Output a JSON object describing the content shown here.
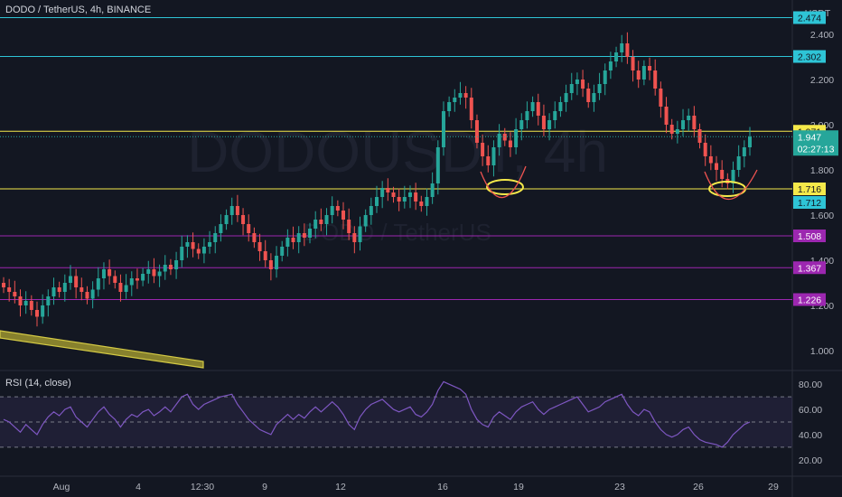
{
  "header": {
    "symbol": "DODO / TetherUS, 4h, BINANCE"
  },
  "currency": "USDT",
  "watermark": {
    "line1": "DODOUSDT, 4h",
    "line2": "DODO / TetherUS"
  },
  "countdown": "02:27:13",
  "colors": {
    "up": "#26a69a",
    "down": "#ef5350",
    "cyan": "#2ec4d6",
    "yellow": "#f5e94a",
    "purple": "#9c27b0",
    "rsi": "#7e57c2",
    "bg": "#131722"
  },
  "chart_data": [
    {
      "type": "candlestick",
      "title": "DODO / TetherUS, 4h, BINANCE",
      "y_axis": {
        "ticks": [
          "2.400",
          "2.200",
          "2.000",
          "1.800",
          "1.600",
          "1.400",
          "1.200",
          "1.000"
        ],
        "ylim": [
          0.92,
          2.52
        ]
      },
      "x_axis": {
        "ticks": [
          "Aug",
          "4",
          "12:30",
          "9",
          "12",
          "16",
          "19",
          "23",
          "26",
          "29"
        ]
      },
      "price_lines": [
        {
          "value": "2.474",
          "color": "#2ec4d6"
        },
        {
          "value": "2.302",
          "color": "#2ec4d6"
        },
        {
          "value": "1.971",
          "color": "#f5e94a"
        },
        {
          "value": "1.716",
          "color": "#f5e94a"
        },
        {
          "value": "1.508",
          "color": "#9c27b0"
        },
        {
          "value": "1.367",
          "color": "#9c27b0"
        },
        {
          "value": "1.226",
          "color": "#9c27b0"
        }
      ],
      "last_price": "1.947",
      "extra_label": "1.712",
      "closes": [
        1.28,
        1.26,
        1.24,
        1.2,
        1.22,
        1.18,
        1.15,
        1.2,
        1.24,
        1.28,
        1.26,
        1.3,
        1.33,
        1.28,
        1.26,
        1.23,
        1.27,
        1.32,
        1.36,
        1.33,
        1.3,
        1.26,
        1.29,
        1.32,
        1.31,
        1.34,
        1.36,
        1.33,
        1.35,
        1.38,
        1.36,
        1.4,
        1.46,
        1.48,
        1.45,
        1.43,
        1.46,
        1.48,
        1.52,
        1.56,
        1.6,
        1.64,
        1.6,
        1.56,
        1.52,
        1.48,
        1.44,
        1.4,
        1.36,
        1.42,
        1.46,
        1.5,
        1.48,
        1.52,
        1.5,
        1.54,
        1.58,
        1.56,
        1.6,
        1.64,
        1.62,
        1.58,
        1.52,
        1.48,
        1.55,
        1.6,
        1.64,
        1.68,
        1.72,
        1.7,
        1.68,
        1.66,
        1.68,
        1.7,
        1.66,
        1.64,
        1.68,
        1.74,
        1.9,
        2.06,
        2.1,
        2.12,
        2.14,
        2.12,
        2.02,
        1.92,
        1.86,
        1.82,
        1.9,
        1.96,
        1.93,
        1.9,
        1.98,
        2.02,
        2.06,
        2.1,
        2.04,
        1.98,
        2.02,
        2.06,
        2.1,
        2.14,
        2.18,
        2.2,
        2.16,
        2.1,
        2.14,
        2.18,
        2.24,
        2.28,
        2.32,
        2.36,
        2.3,
        2.24,
        2.2,
        2.26,
        2.24,
        2.16,
        2.08,
        2.0,
        1.96,
        1.98,
        2.02,
        2.04,
        1.98,
        1.92,
        1.86,
        1.83,
        1.8,
        1.76,
        1.74,
        1.8,
        1.86,
        1.9,
        1.947
      ],
      "rsi": {
        "label": "RSI (14, close)",
        "ticks": [
          "80.00",
          "60.00",
          "40.00",
          "20.00"
        ],
        "levels": [
          70,
          50,
          30
        ],
        "values": [
          52,
          50,
          46,
          42,
          48,
          44,
          40,
          48,
          54,
          58,
          55,
          60,
          62,
          54,
          50,
          46,
          52,
          58,
          62,
          56,
          52,
          46,
          52,
          56,
          54,
          58,
          60,
          55,
          58,
          62,
          58,
          64,
          70,
          72,
          64,
          60,
          64,
          66,
          68,
          70,
          71,
          72,
          64,
          58,
          52,
          48,
          44,
          42,
          40,
          48,
          52,
          56,
          52,
          56,
          53,
          58,
          62,
          58,
          62,
          66,
          62,
          56,
          48,
          44,
          54,
          60,
          64,
          66,
          68,
          64,
          60,
          58,
          60,
          62,
          56,
          54,
          58,
          64,
          75,
          82,
          80,
          78,
          76,
          72,
          60,
          52,
          48,
          46,
          54,
          58,
          55,
          52,
          58,
          62,
          64,
          66,
          60,
          56,
          60,
          62,
          64,
          66,
          68,
          70,
          64,
          58,
          60,
          62,
          66,
          68,
          70,
          72,
          64,
          58,
          55,
          60,
          58,
          50,
          44,
          40,
          38,
          40,
          44,
          46,
          40,
          36,
          34,
          33,
          32,
          30,
          34,
          40,
          44,
          48,
          50
        ]
      }
    }
  ]
}
